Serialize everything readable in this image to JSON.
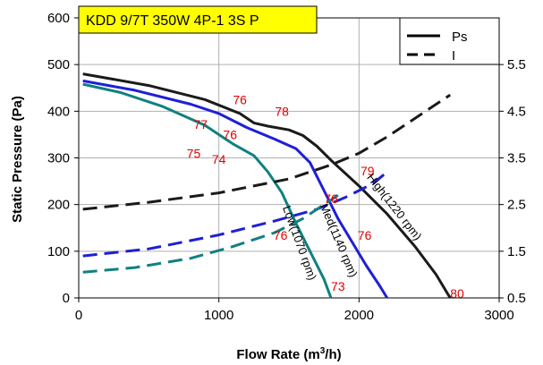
{
  "chart_data": {
    "type": "line",
    "title": "KDD 9/7T 350W 4P-1 3S P",
    "xlabel": "Flow Rate (m3/h)",
    "xlabel_main": "Flow Rate (m",
    "xlabel_sup": "3",
    "xlabel_tail": "/h)",
    "ylabel": "Static Pressure (Pa)",
    "xlim": [
      0,
      3000
    ],
    "ylim": [
      0,
      600
    ],
    "y2lim": [
      0.5,
      6.5
    ],
    "xticks": [
      "0",
      "1000",
      "2000",
      "3000"
    ],
    "yticks": [
      "0",
      "100",
      "200",
      "300",
      "400",
      "500",
      "600"
    ],
    "y2ticks": [
      "0.5",
      "1.5",
      "2.5",
      "3.5",
      "4.5",
      "5.5"
    ],
    "grid": true,
    "legend_position": "top-right",
    "legend": [
      {
        "label": "Ps",
        "style": "solid"
      },
      {
        "label": "I",
        "style": "dashed"
      }
    ],
    "colors": {
      "high": "#1a1a1a",
      "med": "#1f1fd6",
      "low": "#118080",
      "annotation": "#e00000",
      "title_bg": "#ffff00"
    },
    "series": [
      {
        "key": "high",
        "label": "High(1220 rpm)",
        "axis": "left",
        "style": "solid",
        "points": [
          [
            30,
            480
          ],
          [
            500,
            455
          ],
          [
            900,
            425
          ],
          [
            1150,
            395
          ],
          [
            1250,
            375
          ],
          [
            1350,
            368
          ],
          [
            1500,
            360
          ],
          [
            1600,
            348
          ],
          [
            1700,
            325
          ],
          [
            1800,
            295
          ],
          [
            2000,
            240
          ],
          [
            2200,
            180
          ],
          [
            2400,
            110
          ],
          [
            2550,
            50
          ],
          [
            2650,
            0
          ]
        ]
      },
      {
        "key": "med",
        "label": "Med(1140 rpm)",
        "axis": "left",
        "style": "solid",
        "points": [
          [
            30,
            465
          ],
          [
            400,
            445
          ],
          [
            800,
            415
          ],
          [
            1000,
            395
          ],
          [
            1200,
            365
          ],
          [
            1400,
            340
          ],
          [
            1550,
            320
          ],
          [
            1650,
            290
          ],
          [
            1750,
            230
          ],
          [
            1850,
            170
          ],
          [
            1950,
            120
          ],
          [
            2050,
            70
          ],
          [
            2150,
            25
          ],
          [
            2200,
            0
          ]
        ]
      },
      {
        "key": "low",
        "label": "Low(1070 rpm)",
        "axis": "left",
        "style": "solid",
        "points": [
          [
            30,
            458
          ],
          [
            300,
            440
          ],
          [
            600,
            410
          ],
          [
            900,
            370
          ],
          [
            1100,
            330
          ],
          [
            1250,
            305
          ],
          [
            1350,
            270
          ],
          [
            1450,
            225
          ],
          [
            1550,
            160
          ],
          [
            1650,
            100
          ],
          [
            1750,
            40
          ],
          [
            1800,
            0
          ]
        ]
      },
      {
        "key": "high",
        "label": "",
        "axis": "right",
        "style": "dashed",
        "points": [
          [
            30,
            2.4
          ],
          [
            500,
            2.55
          ],
          [
            1000,
            2.75
          ],
          [
            1500,
            3.05
          ],
          [
            1800,
            3.35
          ],
          [
            2000,
            3.6
          ],
          [
            2200,
            3.95
          ],
          [
            2400,
            4.35
          ],
          [
            2650,
            4.85
          ]
        ]
      },
      {
        "key": "med",
        "label": "",
        "axis": "right",
        "style": "dashed",
        "points": [
          [
            30,
            1.4
          ],
          [
            500,
            1.55
          ],
          [
            1000,
            1.85
          ],
          [
            1400,
            2.15
          ],
          [
            1700,
            2.4
          ],
          [
            1900,
            2.65
          ],
          [
            2100,
            2.95
          ],
          [
            2200,
            3.2
          ]
        ]
      },
      {
        "key": "low",
        "label": "",
        "axis": "right",
        "style": "dashed",
        "points": [
          [
            30,
            1.05
          ],
          [
            400,
            1.15
          ],
          [
            800,
            1.35
          ],
          [
            1100,
            1.6
          ],
          [
            1400,
            1.9
          ],
          [
            1600,
            2.2
          ],
          [
            1750,
            2.5
          ],
          [
            1850,
            2.7
          ]
        ]
      }
    ],
    "curve_labels": [
      {
        "text": "High(1220 rpm)",
        "x": 2230,
        "y": 190,
        "angle": 52
      },
      {
        "text": "Med(1140 rpm)",
        "x": 1830,
        "y": 120,
        "angle": 67
      },
      {
        "text": "Low(1070 rpm)",
        "x": 1550,
        "y": 115,
        "angle": 70
      }
    ],
    "annotations": [
      {
        "text": "76",
        "x": 1150,
        "y": 415
      },
      {
        "text": "78",
        "x": 1450,
        "y": 390
      },
      {
        "text": "77",
        "x": 870,
        "y": 362
      },
      {
        "text": "76",
        "x": 1080,
        "y": 340
      },
      {
        "text": "75",
        "x": 820,
        "y": 300
      },
      {
        "text": "74",
        "x": 1000,
        "y": 288
      },
      {
        "text": "76",
        "x": 1800,
        "y": 203
      },
      {
        "text": "79",
        "x": 2060,
        "y": 263
      },
      {
        "text": "76",
        "x": 1440,
        "y": 125
      },
      {
        "text": "76",
        "x": 2040,
        "y": 125
      },
      {
        "text": "73",
        "x": 1850,
        "y": 15
      },
      {
        "text": "80",
        "x": 2700,
        "y": 0
      }
    ]
  }
}
